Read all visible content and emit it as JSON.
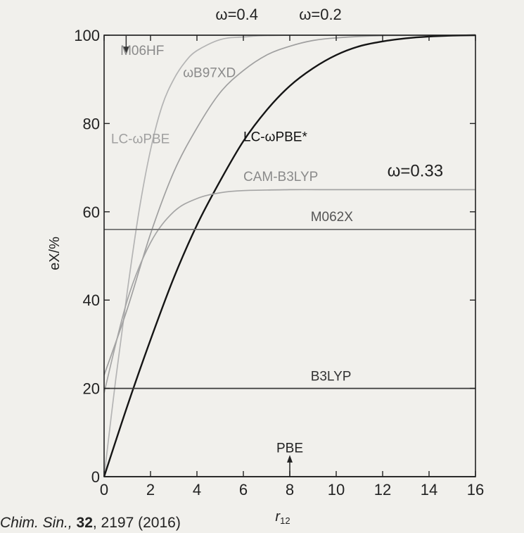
{
  "chart_data": {
    "type": "line",
    "xlabel": "r",
    "xlabel_sub": "12",
    "ylabel": "eX/%",
    "xlim": [
      0,
      16
    ],
    "ylim": [
      0,
      100
    ],
    "xticks": [
      0,
      2,
      4,
      6,
      8,
      10,
      12,
      14,
      16
    ],
    "yticks": [
      0,
      20,
      40,
      60,
      80,
      100
    ],
    "grid": false,
    "series": [
      {
        "name": "M06HF",
        "color": "#a8a8a8",
        "x": [
          0,
          16
        ],
        "y": [
          100,
          100
        ]
      },
      {
        "name": "LC-ωPBE",
        "color": "#b4b4b4",
        "x": [
          0,
          0.5,
          1,
          1.5,
          2,
          2.5,
          3,
          3.5,
          4,
          5,
          6,
          8,
          16
        ],
        "y": [
          0,
          22,
          42,
          60,
          74,
          84,
          90,
          94,
          96.5,
          99,
          99.6,
          100,
          100
        ]
      },
      {
        "name": "ωB97XD",
        "color": "#a0a0a0",
        "x": [
          0,
          1,
          2,
          3,
          4,
          5,
          6,
          7,
          8,
          9,
          10,
          12,
          16
        ],
        "y": [
          23,
          38,
          55,
          69,
          79,
          87,
          92,
          95.5,
          97.5,
          98.8,
          99.4,
          99.9,
          100
        ]
      },
      {
        "name": "LC-ωPBE*",
        "color": "#151515",
        "x": [
          0,
          1,
          2,
          3,
          4,
          5,
          6,
          7,
          8,
          9,
          10,
          11,
          12,
          13,
          14,
          15,
          16
        ],
        "y": [
          0,
          16,
          31,
          45,
          57,
          67,
          76,
          83,
          88.5,
          92.5,
          95.5,
          97.5,
          98.6,
          99.3,
          99.7,
          99.9,
          100
        ]
      },
      {
        "name": "CAM-B3LYP",
        "color": "#a5a5a5",
        "x": [
          0,
          1,
          2,
          3,
          4,
          5,
          6,
          8,
          10,
          12,
          16
        ],
        "y": [
          19,
          40,
          53,
          60,
          63,
          64.3,
          64.8,
          65,
          65,
          65,
          65
        ]
      },
      {
        "name": "M062X",
        "color": "#6e6e6e",
        "x": [
          0,
          16
        ],
        "y": [
          56,
          56
        ]
      },
      {
        "name": "B3LYP",
        "color": "#3a3a3a",
        "x": [
          0,
          16
        ],
        "y": [
          20,
          20
        ]
      },
      {
        "name": "PBE",
        "color": "#222222",
        "x": [
          0,
          16
        ],
        "y": [
          0,
          0
        ]
      }
    ],
    "annotations": [
      {
        "text": "M06HF",
        "x": 0.7,
        "y": 95.5,
        "color": "#8a8a8a",
        "arrow": "down"
      },
      {
        "text": "ωB97XD",
        "x": 3.4,
        "y": 90.5,
        "color": "#8a8a8a"
      },
      {
        "text": "LC-ωPBE",
        "x": 0.3,
        "y": 75.5,
        "color": "#a0a0a0"
      },
      {
        "text": "LC-ωPBE*",
        "x": 6.0,
        "y": 76.0,
        "color": "#111111"
      },
      {
        "text": "CAM-B3LYP",
        "x": 6.0,
        "y": 67.0,
        "color": "#8a8a8a"
      },
      {
        "text": "ω=0.33",
        "x": 12.2,
        "y": 68.0,
        "color": "#222222",
        "big": true
      },
      {
        "text": "M062X",
        "x": 8.9,
        "y": 57.9,
        "color": "#555555"
      },
      {
        "text": "B3LYP",
        "x": 8.9,
        "y": 21.8,
        "color": "#333333"
      },
      {
        "text": "PBE",
        "x": 8.0,
        "y": 5.5,
        "color": "#222222",
        "arrow": "up"
      },
      {
        "text": "ω=0.4",
        "x": 4.8,
        "y": 103.5,
        "color": "#222222"
      },
      {
        "text": "ω=0.2",
        "x": 8.4,
        "y": 103.5,
        "color": "#222222"
      }
    ]
  },
  "caption_parts": [
    "Chim. Sin., ",
    "32",
    ", 2197 (2016)"
  ]
}
